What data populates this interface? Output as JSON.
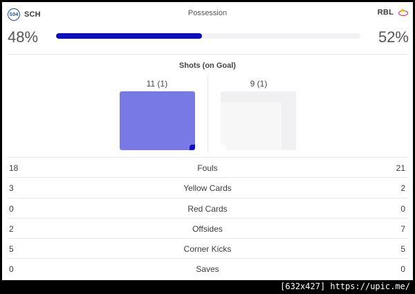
{
  "possession": {
    "title": "Possession",
    "home": {
      "team": "SCH",
      "percent_label": "48%",
      "value": 48,
      "crest_text": "S04"
    },
    "away": {
      "team": "RBL",
      "percent_label": "52%",
      "value": 52
    },
    "colors": {
      "fill": "#0b0fc1",
      "track": "#f2f2f4"
    }
  },
  "shots": {
    "title": "Shots (on Goal)",
    "home": {
      "label": "11 (1)",
      "shots": 11,
      "on_goal": 1
    },
    "away": {
      "label": "9 (1)",
      "shots": 9,
      "on_goal": 1
    },
    "colors": {
      "home": "#7979e6",
      "home_on_goal": "#0b0fc1",
      "away": "#f0f0f2"
    }
  },
  "stats": [
    {
      "label": "Fouls",
      "home": "18",
      "away": "21"
    },
    {
      "label": "Yellow Cards",
      "home": "3",
      "away": "2"
    },
    {
      "label": "Red Cards",
      "home": "0",
      "away": "0"
    },
    {
      "label": "Offsides",
      "home": "2",
      "away": "7"
    },
    {
      "label": "Corner Kicks",
      "home": "5",
      "away": "5"
    },
    {
      "label": "Saves",
      "home": "0",
      "away": "0"
    }
  ],
  "watermark": "[632x427] https://upic.me/"
}
